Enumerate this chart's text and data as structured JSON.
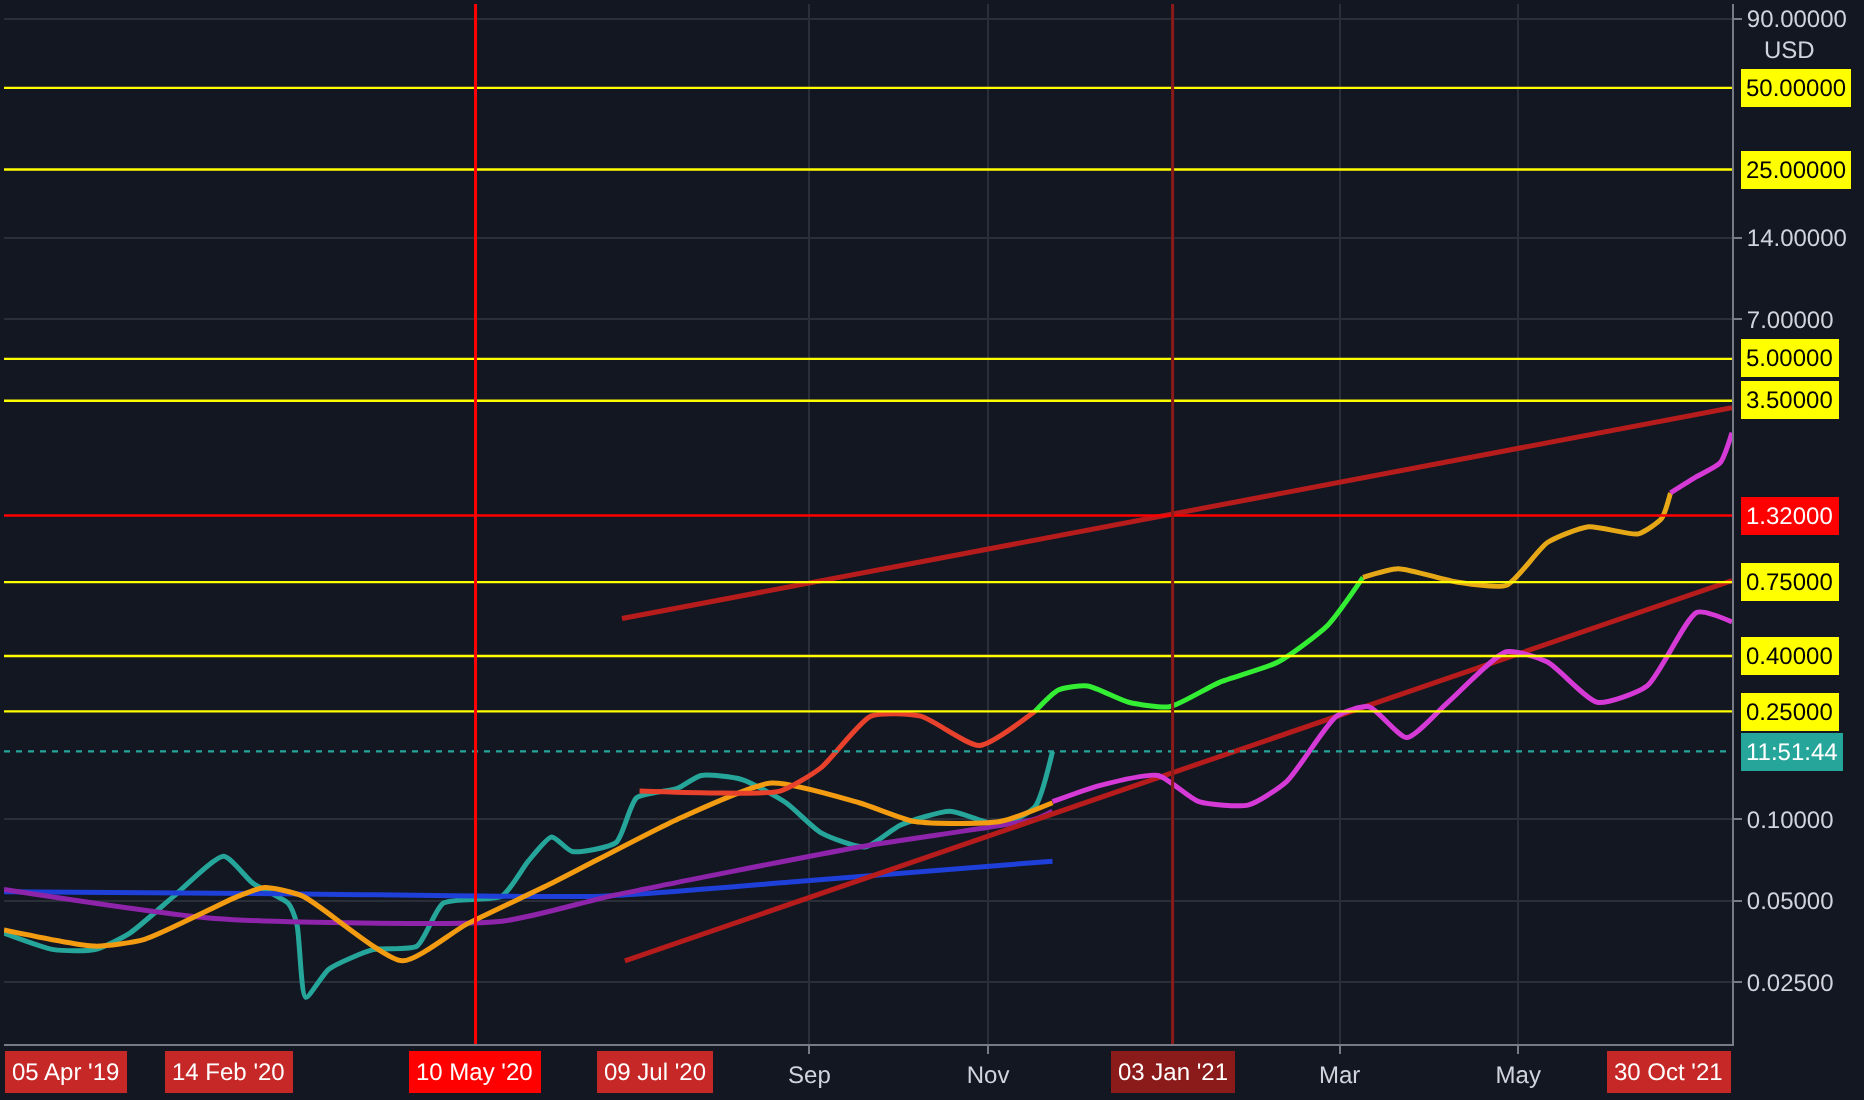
{
  "chart_data": {
    "type": "line",
    "annotations": [
      "USD",
      "05 Apr '19",
      "14 Feb '20",
      "09 Jul '20",
      "30 Oct '21",
      "11:51:44"
    ],
    "xlim": [
      "2019-12-01",
      "2021-07-13"
    ],
    "xticks": [
      {
        "value": "2020-09-01",
        "label": "Sep"
      },
      {
        "value": "2020-11-01",
        "label": "Nov"
      },
      {
        "value": "2021-03-01",
        "label": "Mar"
      },
      {
        "value": "2021-05-01",
        "label": "May"
      }
    ],
    "ylim": [
      0.0148,
      102
    ],
    "yticks": [
      {
        "value": 90,
        "label": "90.00000"
      },
      {
        "value": 14,
        "label": "14.00000"
      },
      {
        "value": 7,
        "label": "7.00000"
      },
      {
        "value": 0.1,
        "label": "0.10000"
      },
      {
        "value": 0.05,
        "label": "0.05000"
      },
      {
        "value": 0.025,
        "label": "0.02500"
      }
    ],
    "log": "y",
    "grid": true,
    "marker": "none",
    "line_style": "solid",
    "series": [
      {
        "color": "#26a69a",
        "x": [
          "2019-12-01",
          "2019-12-18",
          "2020-01-01",
          "2020-01-13",
          "2020-01-28",
          "2020-02-14",
          "2020-02-24",
          "2020-03-07",
          "2020-03-10",
          "2020-03-13",
          "2020-03-21",
          "2020-04-05",
          "2020-04-20",
          "2020-04-29",
          "2020-05-19",
          "2020-05-28",
          "2020-06-05",
          "2020-06-12",
          "2020-06-27",
          "2020-07-04",
          "2020-07-18",
          "2020-07-26",
          "2020-08-09",
          "2020-08-24",
          "2020-09-05",
          "2020-09-20",
          "2020-10-02",
          "2020-10-19",
          "2020-11-05",
          "2020-11-17",
          "2020-11-23"
        ],
        "values": [
          0.038,
          0.033,
          0.033,
          0.038,
          0.052,
          0.073,
          0.058,
          0.049,
          0.041,
          0.022,
          0.028,
          0.033,
          0.034,
          0.049,
          0.052,
          0.07,
          0.086,
          0.076,
          0.082,
          0.12,
          0.13,
          0.145,
          0.14,
          0.115,
          0.089,
          0.079,
          0.095,
          0.107,
          0.095,
          0.111,
          0.178
        ]
      },
      {
        "color": "#1e3fd8",
        "x": [
          "2019-12-01",
          "2020-03-12",
          "2020-06-22",
          "2020-08-29",
          "2020-11-23"
        ],
        "values": [
          0.054,
          0.053,
          0.052,
          0.059,
          0.07
        ]
      },
      {
        "color": "#8e24aa",
        "x": [
          "2019-12-01",
          "2020-02-11",
          "2020-05-19",
          "2020-06-25",
          "2020-09-18",
          "2020-11-17",
          "2020-11-23"
        ],
        "values": [
          0.055,
          0.043,
          0.042,
          0.052,
          0.079,
          0.1,
          0.107
        ]
      },
      {
        "color": "#f39c12",
        "x": [
          "2019-12-01",
          "2020-01-01",
          "2020-01-18",
          "2020-02-19",
          "2020-02-28",
          "2020-03-12",
          "2020-04-15",
          "2020-05-07",
          "2020-06-05",
          "2020-07-18",
          "2020-08-19",
          "2020-09-18",
          "2020-10-07",
          "2020-11-05",
          "2020-11-23"
        ],
        "values": [
          0.039,
          0.034,
          0.036,
          0.052,
          0.056,
          0.052,
          0.03,
          0.041,
          0.058,
          0.1,
          0.136,
          0.115,
          0.098,
          0.098,
          0.115
        ]
      },
      {
        "color": "#b71c1c",
        "x": [
          "2020-06-29",
          "2021-07-13"
        ],
        "values": [
          0.55,
          3.3
        ]
      },
      {
        "color": "#b71c1c",
        "x": [
          "2020-06-30",
          "2021-07-13"
        ],
        "values": [
          0.03,
          0.76
        ]
      },
      {
        "color": "#e8412c",
        "x": [
          "2020-07-05",
          "2020-07-29",
          "2020-08-22",
          "2020-09-05",
          "2020-09-22",
          "2020-10-09",
          "2020-10-29",
          "2020-11-17"
        ],
        "values": [
          0.127,
          0.125,
          0.127,
          0.155,
          0.24,
          0.24,
          0.187,
          0.25
        ]
      },
      {
        "color": "#33ee33",
        "x": [
          "2020-11-17",
          "2020-11-25",
          "2020-12-05",
          "2020-12-19",
          "2021-01-02",
          "2021-01-19",
          "2021-02-08",
          "2021-02-25",
          "2021-03-09"
        ],
        "values": [
          0.25,
          0.3,
          0.31,
          0.27,
          0.26,
          0.32,
          0.38,
          0.52,
          0.78
        ]
      },
      {
        "color": "#e6a817",
        "x": [
          "2021-03-09",
          "2021-03-21",
          "2021-04-10",
          "2021-04-27",
          "2021-05-11",
          "2021-05-25",
          "2021-06-11",
          "2021-06-19",
          "2021-06-22"
        ],
        "values": [
          0.78,
          0.84,
          0.75,
          0.73,
          1.05,
          1.2,
          1.13,
          1.29,
          1.6
        ]
      },
      {
        "color": "#d63ad6",
        "x": [
          "2021-06-22",
          "2021-07-01",
          "2021-07-09",
          "2021-07-13"
        ],
        "values": [
          1.6,
          1.84,
          2.07,
          2.67
        ]
      },
      {
        "color": "#d63ad6",
        "x": [
          "2020-11-23",
          "2020-12-09",
          "2020-12-29",
          "2021-01-12",
          "2021-01-29",
          "2021-02-11",
          "2021-02-28",
          "2021-03-11",
          "2021-03-24",
          "2021-04-07",
          "2021-04-27",
          "2021-05-11",
          "2021-05-28",
          "2021-06-14",
          "2021-07-01",
          "2021-07-13"
        ],
        "values": [
          0.116,
          0.133,
          0.145,
          0.116,
          0.113,
          0.138,
          0.24,
          0.26,
          0.2,
          0.27,
          0.415,
          0.38,
          0.27,
          0.31,
          0.58,
          0.535
        ]
      }
    ],
    "ref_lines": [
      {
        "axis": "y",
        "value": 50,
        "label": "50.00000",
        "color": "#ffff00"
      },
      {
        "axis": "y",
        "value": 25,
        "label": "25.00000",
        "color": "#ffff00"
      },
      {
        "axis": "y",
        "value": 5,
        "label": "5.00000",
        "color": "#ffff00"
      },
      {
        "axis": "y",
        "value": 3.5,
        "label": "3.50000",
        "color": "#ffff00"
      },
      {
        "axis": "y",
        "value": 1.32,
        "label": "1.32000",
        "color": "#ff0000"
      },
      {
        "axis": "y",
        "value": 0.75,
        "label": "0.75000",
        "color": "#ffff00"
      },
      {
        "axis": "y",
        "value": 0.4,
        "label": "0.40000",
        "color": "#ffff00"
      },
      {
        "axis": "y",
        "value": 0.25,
        "label": "0.25000",
        "color": "#ffff00"
      },
      {
        "axis": "y",
        "value": 0.178,
        "color": "#26a69a",
        "line_style": "dotted"
      },
      {
        "axis": "x",
        "value": "2020-05-10",
        "label": "10 May '20",
        "color": "#ff0000"
      },
      {
        "axis": "x",
        "value": "2021-01-03",
        "label": "03 Jan '21",
        "color": "#8b1a1a"
      }
    ]
  }
}
